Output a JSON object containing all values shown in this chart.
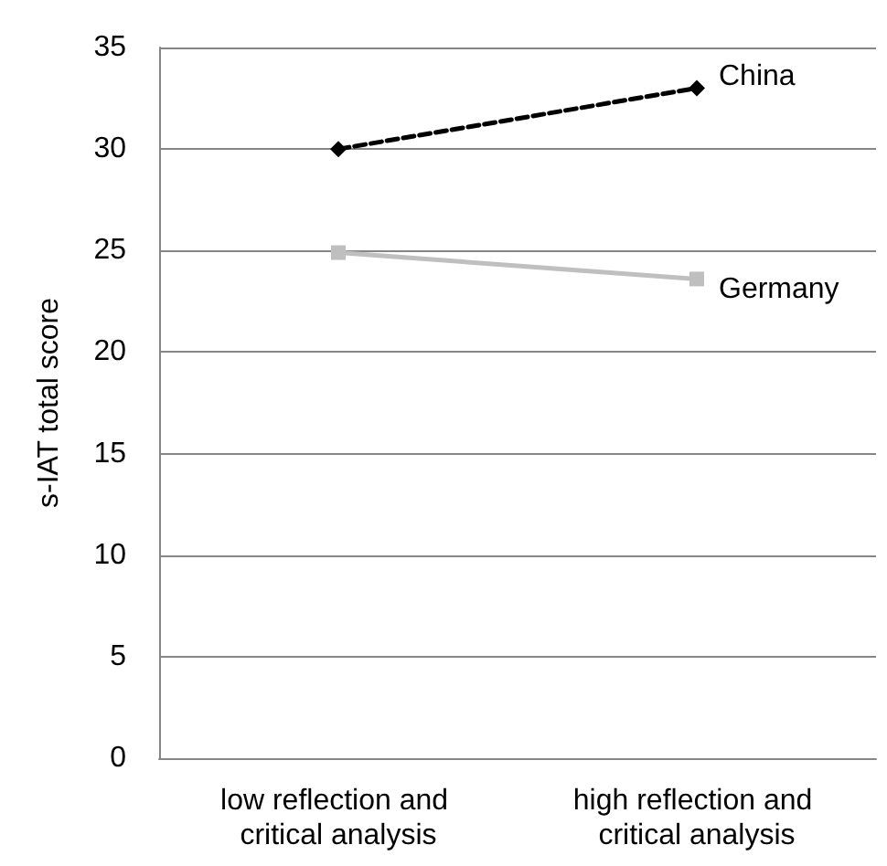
{
  "chart_data": {
    "type": "line",
    "ylabel": "s-IAT total score",
    "categories": [
      "low reflection and critical analysis",
      "high reflection and critical analysis"
    ],
    "series": [
      {
        "name": "China",
        "color": "#000000",
        "values": [
          30,
          33
        ],
        "marker": "diamond",
        "line_style": "dashed"
      },
      {
        "name": "Germany",
        "color": "#bfbfbf",
        "values": [
          24.9,
          23.6
        ],
        "marker": "square",
        "line_style": "solid"
      }
    ],
    "ylim": [
      0,
      35
    ],
    "yticks": [
      0,
      5,
      10,
      15,
      20,
      25,
      30,
      35
    ],
    "grid": "y",
    "legend": false
  }
}
